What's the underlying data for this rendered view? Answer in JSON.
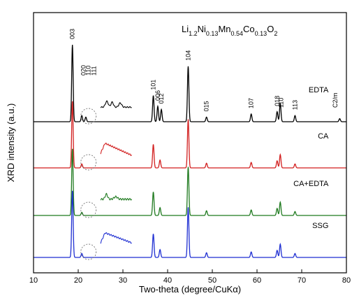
{
  "chart_data": {
    "type": "line",
    "title": "Li1.2Ni0.13Mn0.54Co0.13O2",
    "title_parts": [
      {
        "text": "Li",
        "sub": false
      },
      {
        "text": "1.2",
        "sub": true
      },
      {
        "text": "Ni",
        "sub": false
      },
      {
        "text": "0.13",
        "sub": true
      },
      {
        "text": "Mn",
        "sub": false
      },
      {
        "text": "0.54",
        "sub": true
      },
      {
        "text": "Co",
        "sub": false
      },
      {
        "text": "0.13",
        "sub": true
      },
      {
        "text": "O",
        "sub": false
      },
      {
        "text": "2",
        "sub": true
      }
    ],
    "xlabel": "Two-theta (degree/CuKα)",
    "ylabel": "XRD intensity (a.u.)",
    "xlim": [
      10,
      80
    ],
    "xticks": [
      10,
      20,
      30,
      40,
      50,
      60,
      70,
      80
    ],
    "yticks_shown": false,
    "grid": false,
    "series": [
      {
        "name": "EDTA",
        "color": "#000000",
        "peaks": [
          {
            "x": 18.7,
            "h": 1.0
          },
          {
            "x": 20.8,
            "h": 0.08
          },
          {
            "x": 21.7,
            "h": 0.06
          },
          {
            "x": 36.8,
            "h": 0.34
          },
          {
            "x": 37.8,
            "h": 0.2
          },
          {
            "x": 38.6,
            "h": 0.16
          },
          {
            "x": 44.6,
            "h": 0.72
          },
          {
            "x": 48.7,
            "h": 0.06
          },
          {
            "x": 58.7,
            "h": 0.1
          },
          {
            "x": 64.5,
            "h": 0.13
          },
          {
            "x": 65.2,
            "h": 0.24
          },
          {
            "x": 68.5,
            "h": 0.08
          },
          {
            "x": 78.5,
            "h": 0.04
          }
        ]
      },
      {
        "name": "CA",
        "color": "#d21f1f",
        "peaks": [
          {
            "x": 18.7,
            "h": 0.85
          },
          {
            "x": 20.8,
            "h": 0.05
          },
          {
            "x": 36.8,
            "h": 0.3
          },
          {
            "x": 38.3,
            "h": 0.1
          },
          {
            "x": 44.6,
            "h": 0.62
          },
          {
            "x": 48.7,
            "h": 0.06
          },
          {
            "x": 58.7,
            "h": 0.07
          },
          {
            "x": 64.5,
            "h": 0.09
          },
          {
            "x": 65.2,
            "h": 0.17
          },
          {
            "x": 68.5,
            "h": 0.05
          }
        ]
      },
      {
        "name": "CA+EDTA",
        "color": "#1f7a1f",
        "peaks": [
          {
            "x": 18.7,
            "h": 0.85
          },
          {
            "x": 20.8,
            "h": 0.04
          },
          {
            "x": 36.8,
            "h": 0.3
          },
          {
            "x": 38.3,
            "h": 0.1
          },
          {
            "x": 44.6,
            "h": 0.62
          },
          {
            "x": 48.7,
            "h": 0.06
          },
          {
            "x": 58.7,
            "h": 0.07
          },
          {
            "x": 64.5,
            "h": 0.09
          },
          {
            "x": 65.2,
            "h": 0.17
          },
          {
            "x": 68.5,
            "h": 0.05
          }
        ]
      },
      {
        "name": "SSG",
        "color": "#1f2fd2",
        "peaks": [
          {
            "x": 18.7,
            "h": 0.85
          },
          {
            "x": 20.8,
            "h": 0.05
          },
          {
            "x": 36.8,
            "h": 0.3
          },
          {
            "x": 38.3,
            "h": 0.1
          },
          {
            "x": 44.6,
            "h": 0.64
          },
          {
            "x": 48.7,
            "h": 0.06
          },
          {
            "x": 58.7,
            "h": 0.07
          },
          {
            "x": 64.5,
            "h": 0.09
          },
          {
            "x": 65.2,
            "h": 0.17
          },
          {
            "x": 68.5,
            "h": 0.05
          }
        ]
      }
    ],
    "annotations": [
      {
        "text": "003",
        "x": 18.7,
        "series": "EDTA"
      },
      {
        "text": "020",
        "x": 21.2,
        "series": "EDTA"
      },
      {
        "text": "110",
        "x": 22.3,
        "series": "EDTA"
      },
      {
        "text": "111",
        "x": 23.5,
        "series": "EDTA"
      },
      {
        "text": "101",
        "x": 36.8,
        "series": "EDTA"
      },
      {
        "text": "006",
        "x": 37.8,
        "series": "EDTA"
      },
      {
        "text": "012",
        "x": 38.6,
        "series": "EDTA"
      },
      {
        "text": "104",
        "x": 44.6,
        "series": "EDTA"
      },
      {
        "text": "015",
        "x": 48.7,
        "series": "EDTA"
      },
      {
        "text": "107",
        "x": 58.7,
        "series": "EDTA"
      },
      {
        "text": "018",
        "x": 64.5,
        "series": "EDTA"
      },
      {
        "text": "110",
        "x": 65.4,
        "series": "EDTA"
      },
      {
        "text": "113",
        "x": 68.5,
        "series": "EDTA"
      },
      {
        "text": "C2/m",
        "x": 77.5,
        "series": "EDTA"
      }
    ],
    "insets": [
      {
        "series": "EDTA",
        "xrange": [
          25,
          32
        ],
        "shape": "three small peaks between 26 and 31"
      },
      {
        "series": "CA",
        "xrange": [
          25,
          32
        ],
        "shape": "broad hump decaying after 26"
      },
      {
        "series": "CA+EDTA",
        "xrange": [
          25,
          32
        ],
        "shape": "noisy hump with small peaks"
      },
      {
        "series": "SSG",
        "xrange": [
          25,
          32
        ],
        "shape": "broad hump decaying after 26"
      }
    ]
  }
}
